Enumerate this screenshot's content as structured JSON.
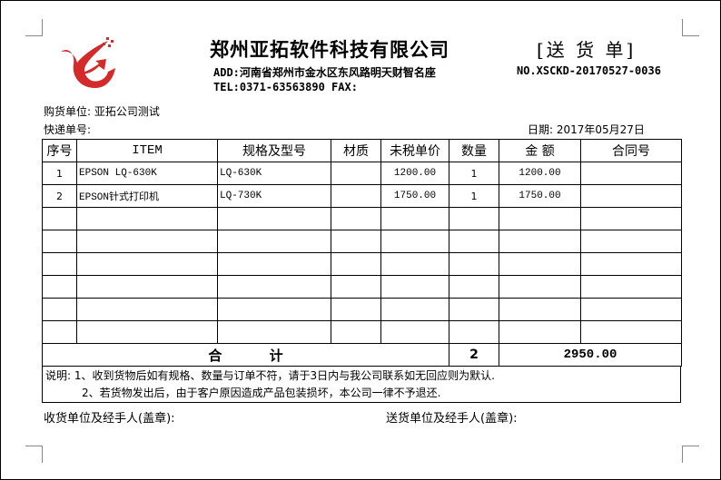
{
  "header": {
    "company": "郑州亚拓软件科技有限公司",
    "doc_type": "[送 货 单]",
    "address": "ADD:河南省郑州市金水区东风路明天财智名座",
    "phone": "TEL:0371-63563890 FAX:",
    "number": "NO.XSCKD-20170527-0036",
    "logo_color": "#d42a2a"
  },
  "info": {
    "buyer": "购货单位: 亚拓公司测试",
    "tracking": "快递单号:",
    "date": "日期: 2017年05月27日"
  },
  "table": {
    "headers": [
      "序号",
      "ITEM",
      "规格及型号",
      "材质",
      "未税单价",
      "数量",
      "金 额",
      "合同号"
    ],
    "rows": [
      [
        "1",
        "EPSON LQ-630K",
        "LQ-630K",
        "",
        "1200.00",
        "1",
        "1200.00",
        ""
      ],
      [
        "2",
        "EPSON针式打印机",
        "LQ-730K",
        "",
        "1750.00",
        "1",
        "1750.00",
        ""
      ],
      [
        "",
        "",
        "",
        "",
        "",
        "",
        "",
        ""
      ],
      [
        "",
        "",
        "",
        "",
        "",
        "",
        "",
        ""
      ],
      [
        "",
        "",
        "",
        "",
        "",
        "",
        "",
        ""
      ],
      [
        "",
        "",
        "",
        "",
        "",
        "",
        "",
        ""
      ],
      [
        "",
        "",
        "",
        "",
        "",
        "",
        "",
        ""
      ],
      [
        "",
        "",
        "",
        "",
        "",
        "",
        "",
        ""
      ]
    ],
    "total_label": "合          计",
    "total_qty": "2",
    "total_amount": "2950.00"
  },
  "notes": {
    "line1": "说明: 1、收到货物后如有规格、数量与订单不符，请于3日内与我公司联系如无回应则为默认.",
    "line2": "2、若货物发出后，由于客户原因造成产品包装损坏，本公司一律不予退还."
  },
  "signatures": {
    "receiver": "收货单位及经手人(盖章):",
    "sender": "送货单位及经手人(盖章):"
  }
}
